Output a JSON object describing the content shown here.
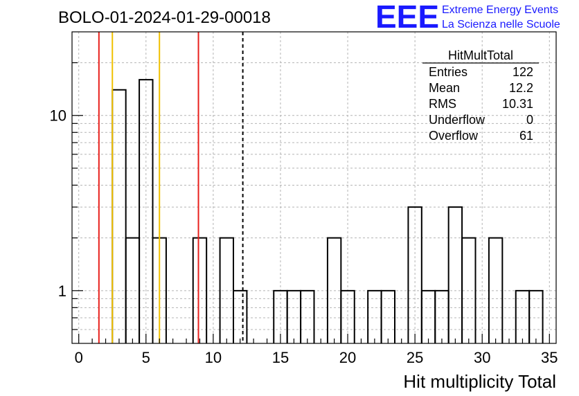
{
  "chart_data": {
    "type": "bar",
    "title": "BOLO-01-2024-01-29-00018",
    "xlabel": "Hit multiplicity Total",
    "ylabel": "",
    "xlim": [
      -0.5,
      35.5
    ],
    "ylim": [
      0.5,
      30
    ],
    "yscale": "log",
    "grid": true,
    "bin_width": 1,
    "bins": [
      {
        "x": 3,
        "y": 14
      },
      {
        "x": 4,
        "y": 2
      },
      {
        "x": 5,
        "y": 16
      },
      {
        "x": 6,
        "y": 2
      },
      {
        "x": 9,
        "y": 2
      },
      {
        "x": 11,
        "y": 2
      },
      {
        "x": 12,
        "y": 1
      },
      {
        "x": 15,
        "y": 1
      },
      {
        "x": 16,
        "y": 1
      },
      {
        "x": 17,
        "y": 1
      },
      {
        "x": 19,
        "y": 2
      },
      {
        "x": 20,
        "y": 1
      },
      {
        "x": 22,
        "y": 1
      },
      {
        "x": 23,
        "y": 1
      },
      {
        "x": 25,
        "y": 3
      },
      {
        "x": 26,
        "y": 1
      },
      {
        "x": 27,
        "y": 1
      },
      {
        "x": 28,
        "y": 3
      },
      {
        "x": 29,
        "y": 2
      },
      {
        "x": 31,
        "y": 2
      },
      {
        "x": 33,
        "y": 1
      },
      {
        "x": 34,
        "y": 1
      }
    ],
    "x_ticks": [
      "0",
      "5",
      "10",
      "15",
      "20",
      "25",
      "30",
      "35"
    ],
    "y_ticks": [
      "1",
      "10"
    ],
    "vertical_lines": [
      {
        "x": 1.5,
        "color": "#e8201c",
        "style": "solid"
      },
      {
        "x": 2.5,
        "color": "#f0c000",
        "style": "solid"
      },
      {
        "x": 6.0,
        "color": "#f0c000",
        "style": "solid"
      },
      {
        "x": 8.9,
        "color": "#e8201c",
        "style": "solid"
      },
      {
        "x": 12.2,
        "color": "#000000",
        "style": "dashed"
      }
    ],
    "stats_box": {
      "title": "HitMultTotal",
      "rows": [
        {
          "label": "Entries",
          "value": "122"
        },
        {
          "label": "Mean",
          "value": "12.2"
        },
        {
          "label": "RMS",
          "value": "10.31"
        },
        {
          "label": "Underflow",
          "value": "0"
        },
        {
          "label": "Overflow",
          "value": "61"
        }
      ]
    }
  },
  "logo": {
    "mark": "EEE",
    "line1": "Extreme Energy Events",
    "line2": "La Scienza nelle Scuole"
  },
  "colors": {
    "logo_blue": "#1a1aff",
    "grid": "#b4b4b4",
    "red_marker": "#e8201c",
    "yellow_marker": "#f0c000"
  }
}
